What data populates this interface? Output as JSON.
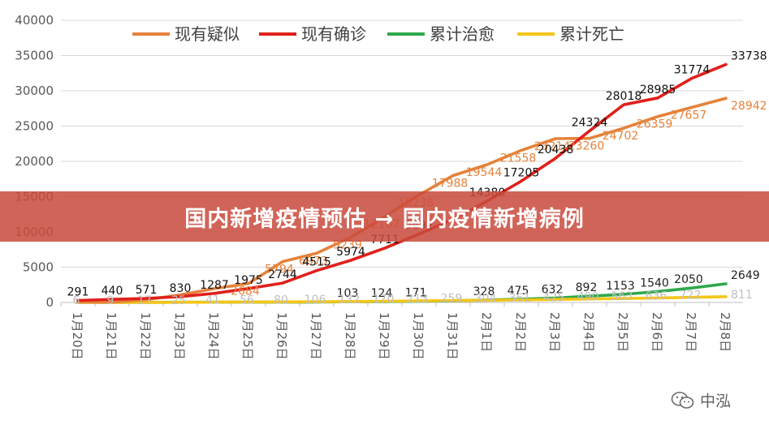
{
  "banner": {
    "title": "国内新增疫情预估 → 国内疫情新增病例"
  },
  "watermark": {
    "text": "中泓"
  },
  "chart_data": {
    "type": "line",
    "title": "",
    "xlabel": "",
    "ylabel": "",
    "ylim": [
      0,
      40000
    ],
    "yticks": [
      0,
      5000,
      10000,
      15000,
      20000,
      25000,
      30000,
      35000,
      40000
    ],
    "grid": "horizontal",
    "legend_position": "top",
    "categories": [
      "1月20日",
      "1月21日",
      "1月22日",
      "1月23日",
      "1月24日",
      "1月25日",
      "1月26日",
      "1月27日",
      "1月28日",
      "1月29日",
      "1月30日",
      "1月31日",
      "2月1日",
      "2月2日",
      "2月3日",
      "2月4日",
      "2月5日",
      "2月6日",
      "2月7日",
      "2月8日"
    ],
    "series": [
      {
        "name": "现有疑似",
        "color": "#E5823A",
        "values": [
          54,
          37,
          393,
          1072,
          1965,
          2684,
          5794,
          6973,
          9239,
          12167,
          15238,
          17988,
          19544,
          21558,
          23214,
          23260,
          24702,
          26359,
          27657,
          28942
        ],
        "labels": [
          null,
          null,
          null,
          null,
          null,
          "2684",
          "5794",
          "6973",
          "9239",
          "12167",
          "15238",
          "17988",
          "19544",
          "21558",
          "23214",
          "23260",
          "24702",
          "26359",
          "27657",
          "28942"
        ]
      },
      {
        "name": "现有确诊",
        "color": "#E0201B",
        "values": [
          291,
          440,
          571,
          830,
          1287,
          1975,
          2744,
          4515,
          5974,
          7711,
          9692,
          11791,
          14380,
          17205,
          20438,
          24324,
          28018,
          28985,
          31774,
          33738
        ],
        "labels": [
          "291",
          "440",
          "571",
          "830",
          "1287",
          "1975",
          "2744",
          "4515",
          "5974",
          "7711",
          "9692",
          null,
          "14380",
          "17205",
          "20438",
          "24324",
          "28018",
          "28985",
          "31774",
          "33738"
        ]
      },
      {
        "name": "累计治愈",
        "color": "#2EA84A",
        "values": [
          25,
          25,
          28,
          34,
          38,
          49,
          51,
          60,
          103,
          124,
          171,
          243,
          328,
          475,
          632,
          892,
          1153,
          1540,
          2050,
          2649
        ],
        "labels": [
          null,
          null,
          null,
          null,
          null,
          null,
          null,
          null,
          "103",
          "124",
          "171",
          null,
          "328",
          "475",
          "632",
          "892",
          "1153",
          "1540",
          "2050",
          "2649"
        ]
      },
      {
        "name": "累计死亡",
        "color": "#F5C518",
        "values": [
          6,
          9,
          17,
          25,
          41,
          56,
          80,
          106,
          132,
          170,
          213,
          259,
          304,
          361,
          425,
          490,
          563,
          636,
          722,
          811
        ],
        "labels": [
          "6",
          "9",
          "17",
          "25",
          "41",
          "56",
          "80",
          "106",
          "132",
          "170",
          "213",
          "259",
          "304",
          "361",
          "425",
          "490",
          "563",
          "636",
          "722",
          "811"
        ]
      }
    ],
    "legend_labels": [
      "现有疑似",
      "现有确诊",
      "累计治愈",
      "累计死亡"
    ]
  }
}
